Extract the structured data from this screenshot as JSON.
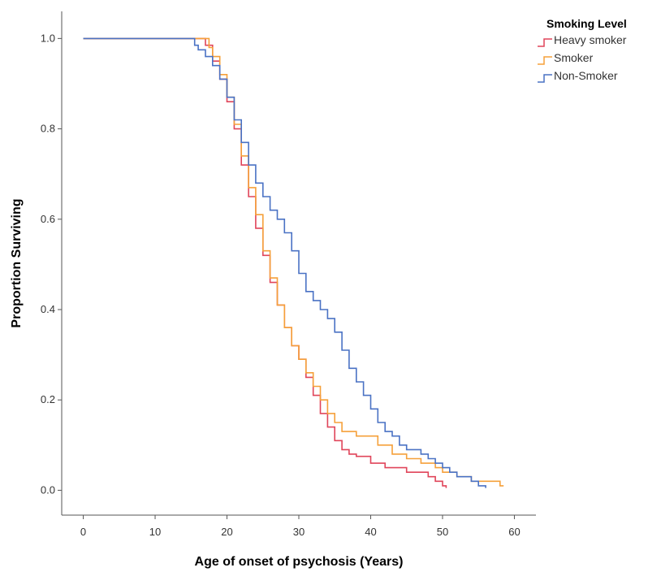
{
  "chart_data": {
    "type": "line",
    "title": "",
    "xlabel": "Age of onset of psychosis (Years)",
    "ylabel": "Proportion Surviving",
    "xlim": [
      -3,
      63
    ],
    "ylim": [
      -0.055,
      1.06
    ],
    "x_ticks": [
      0,
      10,
      20,
      30,
      40,
      50,
      60
    ],
    "y_ticks": [
      0.0,
      0.2,
      0.4,
      0.6,
      0.8,
      1.0
    ],
    "x_tick_labels": [
      "0",
      "10",
      "20",
      "30",
      "40",
      "50",
      "60"
    ],
    "y_tick_labels": [
      "0.0",
      "0.2",
      "0.4",
      "0.6",
      "0.8",
      "1.0"
    ],
    "grid": false,
    "legend": {
      "title": "Smoking Level",
      "position": "top-right"
    },
    "series": [
      {
        "name": "Heavy smoker",
        "color": "#e0455a",
        "points": [
          [
            0,
            1.0
          ],
          [
            16,
            1.0
          ],
          [
            17,
            0.985
          ],
          [
            18,
            0.95
          ],
          [
            19,
            0.91
          ],
          [
            20,
            0.86
          ],
          [
            21,
            0.8
          ],
          [
            22,
            0.72
          ],
          [
            23,
            0.65
          ],
          [
            24,
            0.58
          ],
          [
            25,
            0.52
          ],
          [
            26,
            0.46
          ],
          [
            27,
            0.41
          ],
          [
            28,
            0.36
          ],
          [
            29,
            0.32
          ],
          [
            30,
            0.29
          ],
          [
            31,
            0.25
          ],
          [
            32,
            0.21
          ],
          [
            33,
            0.17
          ],
          [
            34,
            0.14
          ],
          [
            35,
            0.11
          ],
          [
            36,
            0.09
          ],
          [
            37,
            0.08
          ],
          [
            38,
            0.075
          ],
          [
            40,
            0.06
          ],
          [
            42,
            0.05
          ],
          [
            45,
            0.04
          ],
          [
            48,
            0.03
          ],
          [
            49,
            0.02
          ],
          [
            50,
            0.01
          ],
          [
            50.5,
            0.005
          ]
        ]
      },
      {
        "name": "Smoker",
        "color": "#f5a03a",
        "points": [
          [
            0,
            1.0
          ],
          [
            16.5,
            1.0
          ],
          [
            17.5,
            0.98
          ],
          [
            18,
            0.96
          ],
          [
            19,
            0.92
          ],
          [
            20,
            0.87
          ],
          [
            21,
            0.81
          ],
          [
            22,
            0.74
          ],
          [
            23,
            0.67
          ],
          [
            24,
            0.61
          ],
          [
            25,
            0.53
          ],
          [
            26,
            0.47
          ],
          [
            27,
            0.41
          ],
          [
            28,
            0.36
          ],
          [
            29,
            0.32
          ],
          [
            30,
            0.29
          ],
          [
            31,
            0.26
          ],
          [
            32,
            0.23
          ],
          [
            33,
            0.2
          ],
          [
            34,
            0.17
          ],
          [
            35,
            0.15
          ],
          [
            36,
            0.13
          ],
          [
            38,
            0.12
          ],
          [
            40,
            0.12
          ],
          [
            41,
            0.1
          ],
          [
            43,
            0.08
          ],
          [
            45,
            0.07
          ],
          [
            47,
            0.06
          ],
          [
            49,
            0.05
          ],
          [
            50,
            0.04
          ],
          [
            52,
            0.03
          ],
          [
            54,
            0.02
          ],
          [
            56,
            0.02
          ],
          [
            58,
            0.01
          ],
          [
            58.5,
            0.01
          ]
        ]
      },
      {
        "name": "Non-Smoker",
        "color": "#4a72c4",
        "points": [
          [
            0,
            1.0
          ],
          [
            15,
            1.0
          ],
          [
            15.5,
            0.985
          ],
          [
            16,
            0.975
          ],
          [
            17,
            0.96
          ],
          [
            18,
            0.94
          ],
          [
            19,
            0.91
          ],
          [
            20,
            0.87
          ],
          [
            21,
            0.82
          ],
          [
            22,
            0.77
          ],
          [
            23,
            0.72
          ],
          [
            24,
            0.68
          ],
          [
            25,
            0.65
          ],
          [
            26,
            0.62
          ],
          [
            27,
            0.6
          ],
          [
            28,
            0.57
          ],
          [
            29,
            0.53
          ],
          [
            30,
            0.48
          ],
          [
            31,
            0.44
          ],
          [
            32,
            0.42
          ],
          [
            33,
            0.4
          ],
          [
            34,
            0.38
          ],
          [
            35,
            0.35
          ],
          [
            36,
            0.31
          ],
          [
            37,
            0.27
          ],
          [
            38,
            0.24
          ],
          [
            39,
            0.21
          ],
          [
            40,
            0.18
          ],
          [
            41,
            0.15
          ],
          [
            42,
            0.13
          ],
          [
            43,
            0.12
          ],
          [
            44,
            0.1
          ],
          [
            45,
            0.09
          ],
          [
            47,
            0.08
          ],
          [
            48,
            0.07
          ],
          [
            49,
            0.06
          ],
          [
            50,
            0.05
          ],
          [
            51,
            0.04
          ],
          [
            52,
            0.03
          ],
          [
            54,
            0.02
          ],
          [
            55,
            0.01
          ],
          [
            56,
            0.005
          ]
        ]
      }
    ]
  }
}
